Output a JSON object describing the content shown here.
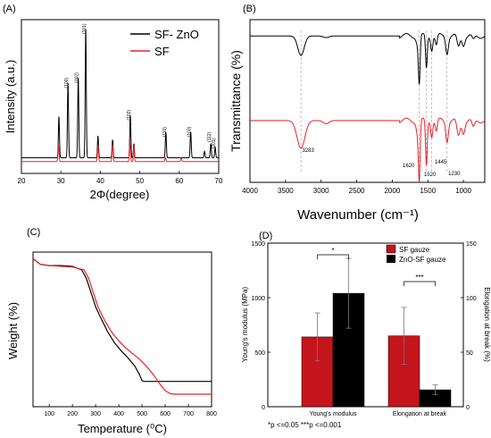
{
  "colors": {
    "black": "#000000",
    "red": "#e8232a",
    "bar_red": "#c4141c",
    "grid": "#bbbbbb"
  },
  "chart_data": [
    {
      "panel": "(A)",
      "type": "line",
      "xlabel": "2Φ(degree)",
      "ylabel": "Intensity (a.u.)",
      "xlim": [
        20,
        70
      ],
      "xticks": [
        20,
        30,
        40,
        50,
        60,
        70
      ],
      "grid": false,
      "legend_position": "top-right",
      "series": [
        {
          "name": "SF- ZnO",
          "color": "#000000",
          "baseline": 0.08,
          "peaks": [
            {
              "x": 29.5,
              "h": 0.32,
              "w": 0.3
            },
            {
              "x": 31.8,
              "h": 0.58,
              "w": 0.3
            },
            {
              "x": 34.4,
              "h": 0.62,
              "w": 0.3
            },
            {
              "x": 36.3,
              "h": 1.0,
              "w": 0.3
            },
            {
              "x": 39.4,
              "h": 0.17,
              "w": 0.3
            },
            {
              "x": 43.1,
              "h": 0.14,
              "w": 0.3
            },
            {
              "x": 47.6,
              "h": 0.33,
              "w": 0.3
            },
            {
              "x": 48.5,
              "h": 0.11,
              "w": 0.25
            },
            {
              "x": 56.6,
              "h": 0.2,
              "w": 0.3
            },
            {
              "x": 62.9,
              "h": 0.2,
              "w": 0.3
            },
            {
              "x": 66.4,
              "h": 0.05,
              "w": 0.3
            },
            {
              "x": 68.0,
              "h": 0.11,
              "w": 0.3
            },
            {
              "x": 69.1,
              "h": 0.08,
              "w": 0.3
            }
          ]
        },
        {
          "name": "SF",
          "color": "#e8232a",
          "baseline": 0.05,
          "peaks": [
            {
              "x": 29.4,
              "h": 0.12,
              "w": 0.3
            },
            {
              "x": 39.4,
              "h": 0.13,
              "w": 0.3
            },
            {
              "x": 43.1,
              "h": 0.13,
              "w": 0.3
            },
            {
              "x": 47.5,
              "h": 0.15,
              "w": 0.3
            },
            {
              "x": 48.5,
              "h": 0.12,
              "w": 0.25
            },
            {
              "x": 56.5,
              "h": 0.03,
              "w": 0.3
            },
            {
              "x": 60.5,
              "h": 0.03,
              "w": 0.3
            }
          ]
        }
      ],
      "annotations": [
        {
          "text": "(100)",
          "x": 31.8,
          "y": 0.6
        },
        {
          "text": "(002)",
          "x": 34.4,
          "y": 0.64
        },
        {
          "text": "(101)",
          "x": 36.3,
          "y": 1.02
        },
        {
          "text": "(102)",
          "x": 47.6,
          "y": 0.35
        },
        {
          "text": "(110)",
          "x": 56.6,
          "y": 0.22
        },
        {
          "text": "(103)",
          "x": 62.9,
          "y": 0.22
        },
        {
          "text": "(112)",
          "x": 68.0,
          "y": 0.18
        },
        {
          "text": "(201)",
          "x": 69.1,
          "y": 0.13
        }
      ]
    },
    {
      "panel": "(B)",
      "type": "line",
      "xlabel": "Wavenumber (cm⁻¹)",
      "ylabel": "Transmittance (%)",
      "xlim": [
        4000,
        700
      ],
      "xticks": [
        4000,
        3500,
        3000,
        2500,
        2000,
        1500,
        1000
      ],
      "grid": false,
      "reference_lines": [
        3283,
        1620,
        1520,
        1445,
        1230
      ],
      "reference_labels": [
        {
          "text": "3283",
          "x": 3283
        },
        {
          "text": "1620",
          "x": 1620
        },
        {
          "text": "1520",
          "x": 1520
        },
        {
          "text": "1445",
          "x": 1445
        },
        {
          "text": "1230",
          "x": 1230
        }
      ],
      "series": [
        {
          "name": "SF- ZnO",
          "color": "#000000",
          "baseline": 0.9,
          "bands": [
            {
              "x": 3283,
              "d": 0.12,
              "w": 45
            },
            {
              "x": 2930,
              "d": 0.01,
              "w": 40
            },
            {
              "x": 1640,
              "d": 0.05,
              "w": 20
            },
            {
              "x": 1620,
              "d": 0.27,
              "w": 12
            },
            {
              "x": 1520,
              "d": 0.2,
              "w": 12
            },
            {
              "x": 1445,
              "d": 0.08,
              "w": 14
            },
            {
              "x": 1380,
              "d": 0.06,
              "w": 14
            },
            {
              "x": 1230,
              "d": 0.1,
              "w": 18
            },
            {
              "x": 1070,
              "d": 0.07,
              "w": 20
            },
            {
              "x": 1000,
              "d": 0.05,
              "w": 20
            },
            {
              "x": 860,
              "d": 0.03,
              "w": 20
            }
          ]
        },
        {
          "name": "SF",
          "color": "#e8232a",
          "baseline": 0.38,
          "bands": [
            {
              "x": 3283,
              "d": 0.17,
              "w": 55
            },
            {
              "x": 2930,
              "d": 0.02,
              "w": 40
            },
            {
              "x": 1640,
              "d": 0.08,
              "w": 20
            },
            {
              "x": 1620,
              "d": 0.33,
              "w": 12
            },
            {
              "x": 1520,
              "d": 0.28,
              "w": 12
            },
            {
              "x": 1445,
              "d": 0.09,
              "w": 14
            },
            {
              "x": 1380,
              "d": 0.07,
              "w": 14
            },
            {
              "x": 1230,
              "d": 0.12,
              "w": 18
            },
            {
              "x": 1070,
              "d": 0.1,
              "w": 22
            },
            {
              "x": 1000,
              "d": 0.07,
              "w": 20
            },
            {
              "x": 860,
              "d": 0.05,
              "w": 20
            }
          ]
        }
      ]
    },
    {
      "panel": "(C)",
      "type": "line",
      "xlabel": "Temperature (⁰C)",
      "ylabel": "Weight (%)",
      "xlim": [
        30,
        800
      ],
      "ylim": [
        0,
        100
      ],
      "xticks": [
        100,
        200,
        300,
        400,
        500,
        600,
        700,
        800
      ],
      "grid": false,
      "series": [
        {
          "name": "SF- ZnO",
          "color": "#000000",
          "x": [
            30,
            60,
            100,
            150,
            200,
            240,
            260,
            280,
            300,
            320,
            350,
            380,
            410,
            440,
            470,
            490,
            500,
            510,
            520,
            550,
            600,
            700,
            800
          ],
          "y": [
            98,
            94,
            93,
            93,
            92.5,
            90,
            84,
            74,
            64,
            57,
            47,
            39,
            33,
            28,
            22,
            16,
            12,
            11.5,
            11.5,
            11.5,
            11.5,
            11.5,
            11.5
          ]
        },
        {
          "name": "SF",
          "color": "#e8232a",
          "x": [
            30,
            60,
            100,
            150,
            200,
            250,
            270,
            290,
            310,
            340,
            370,
            400,
            430,
            460,
            490,
            520,
            550,
            580,
            600,
            620,
            640,
            700,
            800
          ],
          "y": [
            98,
            94,
            93,
            92.5,
            92,
            90,
            84,
            74,
            64,
            54,
            46,
            40,
            35,
            31,
            27,
            22,
            16,
            9,
            5,
            3,
            2.5,
            2.5,
            2.5
          ]
        }
      ]
    },
    {
      "panel": "(D)",
      "type": "bar",
      "categories": [
        "Young's modulus",
        "Elongation at break"
      ],
      "ylabel": "Young's modulus (MPa)",
      "y2label": "Elongation at break (%)",
      "ylim": [
        0,
        1500
      ],
      "y2lim": [
        0,
        150
      ],
      "yticks": [
        0,
        500,
        1000,
        1500
      ],
      "y2ticks": [
        0,
        50,
        100,
        150
      ],
      "legend_position": "top-right",
      "series": [
        {
          "name": "SF gauze",
          "color": "#c4141c",
          "values": [
            640,
            650
          ],
          "errors": [
            220,
            260
          ],
          "axis": [
            "left",
            "left"
          ]
        },
        {
          "name": "ZnO-SF gauze",
          "color": "#000000",
          "values": [
            1040,
            155
          ],
          "errors": [
            320,
            45
          ],
          "axis": [
            "left",
            "left"
          ]
        }
      ],
      "significance": [
        {
          "text": "*",
          "category": 0
        },
        {
          "text": "***",
          "category": 1
        }
      ],
      "footnote": "*p <=0.05   ***p <=0.001"
    }
  ]
}
